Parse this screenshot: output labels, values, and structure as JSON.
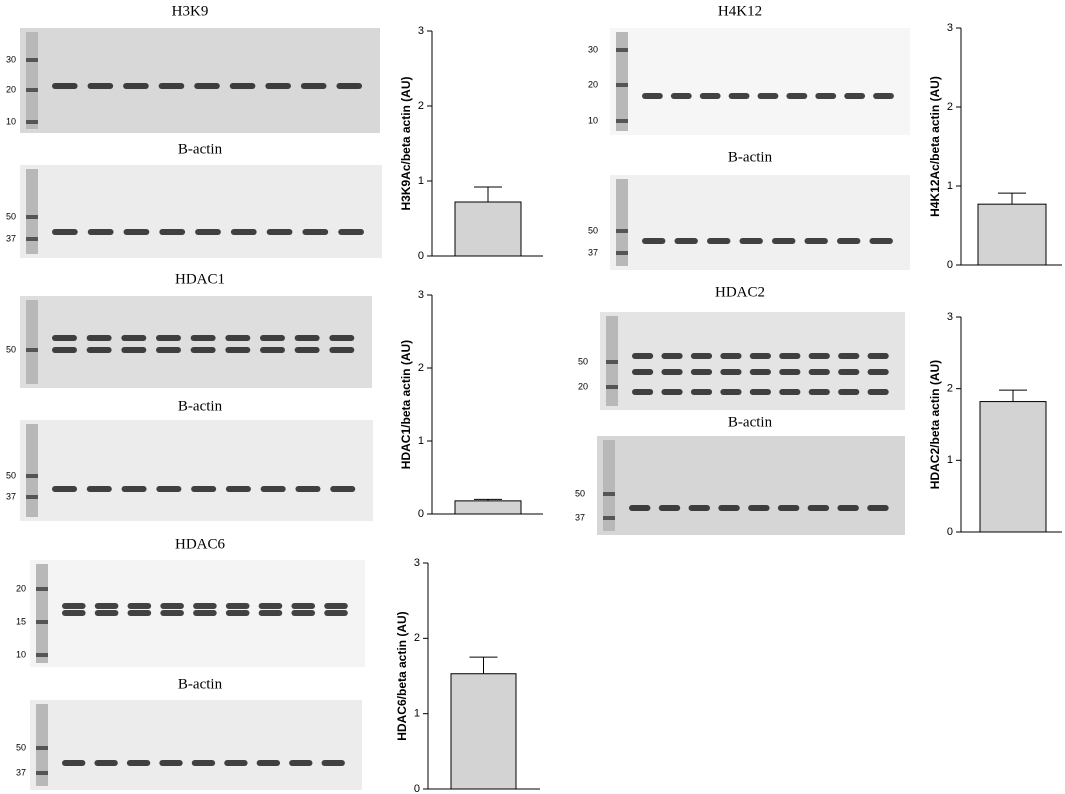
{
  "chart_data": [
    {
      "type": "bar",
      "y_label": "H3K9Ac/beta actin (AU)",
      "categories": [
        null
      ],
      "values": [
        0.72
      ],
      "errors": [
        0.2
      ],
      "ylim": [
        0,
        3
      ],
      "yticks": [
        0,
        1,
        2,
        3
      ],
      "color": "#d3d3d3"
    },
    {
      "type": "bar",
      "y_label": "HDAC1/beta actin (AU)",
      "categories": [
        null
      ],
      "values": [
        0.18
      ],
      "errors": [
        0.02
      ],
      "ylim": [
        0,
        3
      ],
      "yticks": [
        0,
        1,
        2,
        3
      ],
      "color": "#d3d3d3"
    },
    {
      "type": "bar",
      "y_label": "HDAC6/beta actin (AU)",
      "categories": [
        null
      ],
      "values": [
        1.53
      ],
      "errors": [
        0.22
      ],
      "ylim": [
        0,
        3
      ],
      "yticks": [
        0,
        1,
        2,
        3
      ],
      "color": "#d3d3d3"
    },
    {
      "type": "bar",
      "y_label": "H4K12Ac/beta actin (AU)",
      "categories": [
        null
      ],
      "values": [
        0.77
      ],
      "errors": [
        0.14
      ],
      "ylim": [
        0,
        3
      ],
      "yticks": [
        0,
        1,
        2,
        3
      ],
      "color": "#d3d3d3"
    },
    {
      "type": "bar",
      "y_label": "HDAC2/beta actin (AU)",
      "categories": [
        null
      ],
      "values": [
        1.82
      ],
      "errors": [
        0.16
      ],
      "ylim": [
        0,
        3
      ],
      "yticks": [
        0,
        1,
        2,
        3
      ],
      "color": "#d3d3d3"
    }
  ],
  "blots": [
    {
      "title": "H3K9",
      "markers": [
        30,
        20,
        10
      ]
    },
    {
      "title": "B-actin",
      "markers": [
        50,
        37
      ]
    },
    {
      "title": "HDAC1",
      "markers": [
        50
      ]
    },
    {
      "title": "B-actin",
      "markers": [
        50,
        37
      ]
    },
    {
      "title": "HDAC6",
      "markers": [
        20,
        15,
        10
      ]
    },
    {
      "title": "B-actin",
      "markers": [
        50,
        37
      ]
    },
    {
      "title": "H4K12",
      "markers": [
        30,
        20,
        10
      ]
    },
    {
      "title": "B-actin",
      "markers": [
        50,
        37
      ]
    },
    {
      "title": "HDAC2",
      "markers": [
        50,
        20
      ]
    },
    {
      "title": "B-actin",
      "markers": [
        50,
        37
      ]
    }
  ]
}
